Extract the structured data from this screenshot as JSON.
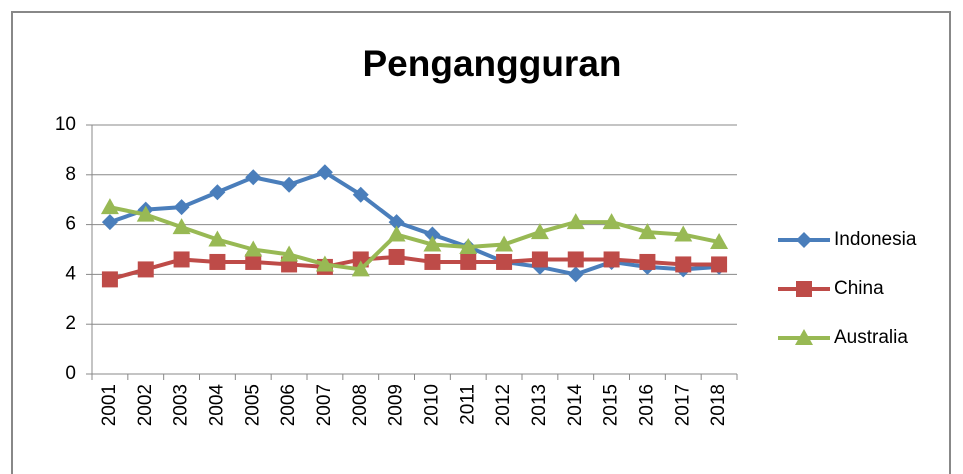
{
  "chart_data": {
    "type": "line",
    "title": "Pengangguran",
    "categories": [
      "2001",
      "2002",
      "2003",
      "2004",
      "2005",
      "2006",
      "2007",
      "2008",
      "2009",
      "2010",
      "2011",
      "2012",
      "2013",
      "2014",
      "2015",
      "2016",
      "2017",
      "2018"
    ],
    "series": [
      {
        "name": "Indonesia",
        "color": "#4a7ebb",
        "marker": "diamond",
        "values": [
          6.1,
          6.6,
          6.7,
          7.3,
          7.9,
          7.6,
          8.1,
          7.2,
          6.1,
          5.6,
          5.1,
          4.5,
          4.3,
          4.0,
          4.5,
          4.3,
          4.2,
          4.3
        ]
      },
      {
        "name": "China",
        "color": "#be4b48",
        "marker": "square",
        "values": [
          3.8,
          4.2,
          4.6,
          4.5,
          4.5,
          4.4,
          4.3,
          4.6,
          4.7,
          4.5,
          4.5,
          4.5,
          4.6,
          4.6,
          4.6,
          4.5,
          4.4,
          4.4
        ]
      },
      {
        "name": "Australia",
        "color": "#98b954",
        "marker": "triangle",
        "values": [
          6.7,
          6.4,
          5.9,
          5.4,
          5.0,
          4.8,
          4.4,
          4.2,
          5.6,
          5.2,
          5.1,
          5.2,
          5.7,
          6.1,
          6.1,
          5.7,
          5.6,
          5.3
        ]
      }
    ],
    "ylim": [
      0,
      10
    ],
    "yticks": [
      0,
      2,
      4,
      6,
      8,
      10
    ],
    "grid": true,
    "legend": "right"
  }
}
